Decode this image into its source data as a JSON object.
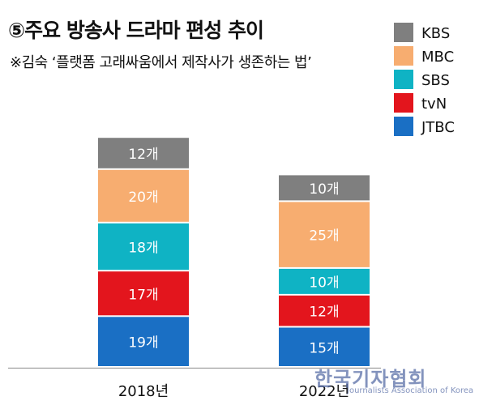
{
  "title": "⑤주요 방송사 드라마 편성 추이",
  "subtitle": "※김숙 ‘플랫폼 고래싸움에서 제작사가 생존하는 법’",
  "watermark": {
    "main": "한국기자협회",
    "sub": "Journalists Association of Korea"
  },
  "chart_data": {
    "type": "bar",
    "stacked": true,
    "title": "⑤주요 방송사 드라마 편성 추이",
    "categories": [
      "2018년",
      "2022년"
    ],
    "value_suffix": "개",
    "legend_position": "top-right",
    "series": [
      {
        "name": "JTBC",
        "color": "#1a6fc4",
        "values": [
          19,
          15
        ]
      },
      {
        "name": "tvN",
        "color": "#e3151d",
        "values": [
          17,
          12
        ]
      },
      {
        "name": "SBS",
        "color": "#0fb3c4",
        "values": [
          18,
          10
        ]
      },
      {
        "name": "MBC",
        "color": "#f7ad70",
        "values": [
          20,
          25
        ]
      },
      {
        "name": "KBS",
        "color": "#7f7f7f",
        "values": [
          12,
          10
        ]
      }
    ],
    "legend_order": [
      "KBS",
      "MBC",
      "SBS",
      "tvN",
      "JTBC"
    ]
  }
}
